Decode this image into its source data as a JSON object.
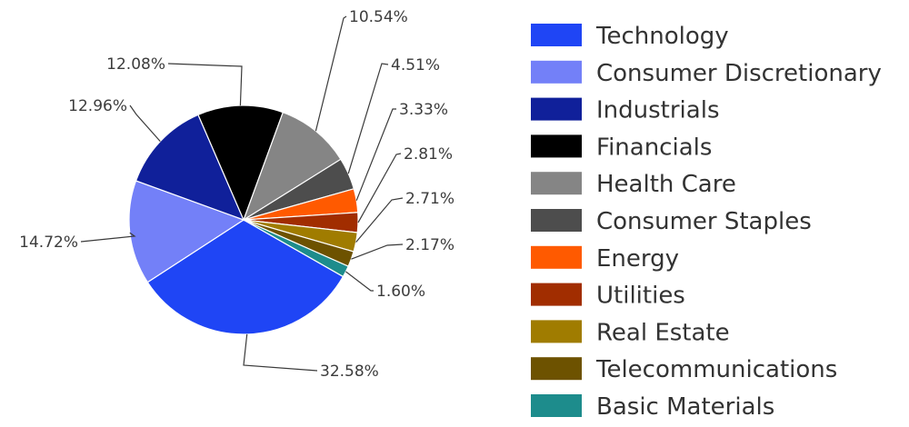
{
  "chart_data": {
    "type": "pie",
    "categories": [
      "Technology",
      "Consumer Discretionary",
      "Industrials",
      "Financials",
      "Health Care",
      "Consumer Staples",
      "Energy",
      "Utilities",
      "Real Estate",
      "Telecommunications",
      "Basic Materials"
    ],
    "values": [
      32.58,
      14.72,
      12.96,
      12.08,
      10.54,
      4.51,
      3.33,
      2.81,
      2.71,
      2.17,
      1.6
    ],
    "value_labels": [
      "32.58%",
      "14.72%",
      "12.96%",
      "12.08%",
      "10.54%",
      "4.51%",
      "3.33%",
      "2.81%",
      "2.71%",
      "2.17%",
      "1.60%"
    ],
    "colors": [
      "#1f45f5",
      "#7380f8",
      "#10209a",
      "#000000",
      "#858585",
      "#4d4d4d",
      "#ff5a00",
      "#a12d00",
      "#a07c00",
      "#6d5200",
      "#1d8c8c"
    ],
    "legend_position": "right"
  }
}
